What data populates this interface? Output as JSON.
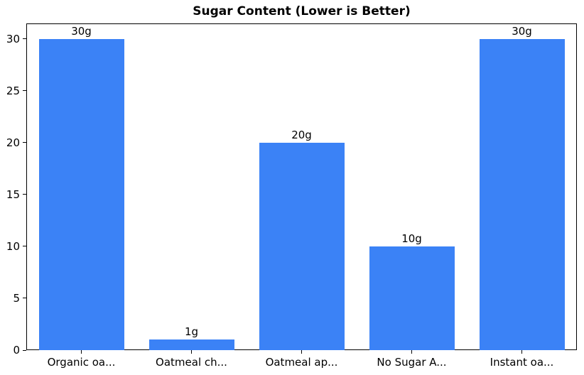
{
  "chart_data": {
    "type": "bar",
    "title": "Sugar Content (Lower is Better)",
    "categories": [
      "Organic oa...",
      "Oatmeal ch...",
      "Oatmeal ap...",
      "No Sugar A...",
      "Instant oa..."
    ],
    "values": [
      30,
      1,
      20,
      10,
      30
    ],
    "bar_labels": [
      "30g",
      "1g",
      "20g",
      "10g",
      "30g"
    ],
    "yticks": [
      0,
      5,
      10,
      15,
      20,
      25,
      30
    ],
    "ylim": [
      0,
      31.5
    ],
    "xlabel": "",
    "ylabel": "",
    "bar_color": "#3b82f6",
    "axis_color": "#000000",
    "grid": false,
    "legend": "none"
  }
}
